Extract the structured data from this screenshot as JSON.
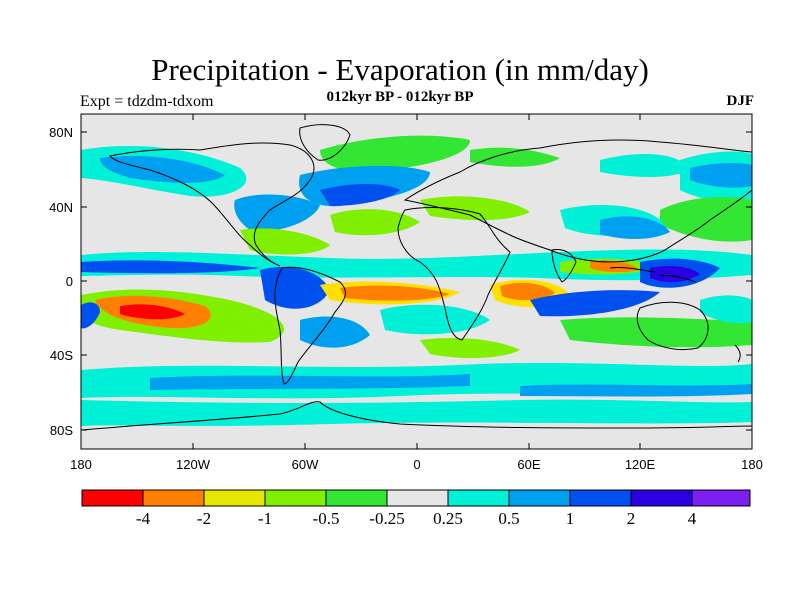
{
  "title": "Precipitation - Evaporation (in mm/day)",
  "subtitle": "012kyr BP - 012kyr BP",
  "left_label": "Expt = tdzdm-tdxom",
  "right_label": "DJF",
  "axes": {
    "lat_ticks": [
      "80N",
      "40N",
      "0",
      "40S",
      "80S"
    ],
    "lon_ticks": [
      "180",
      "120W",
      "60W",
      "0",
      "60E",
      "120E",
      "180"
    ]
  },
  "legend": {
    "colors": [
      "#ff0000",
      "#ff8000",
      "#e6e600",
      "#80f000",
      "#33e633",
      "#e6e6e6",
      "#00f0d8",
      "#00a0f0",
      "#0050f0",
      "#2a00e0",
      "#7a20f0"
    ],
    "labels": [
      "-4",
      "-2",
      "-1",
      "-0.5",
      "-0.25",
      "0.25",
      "0.5",
      "1",
      "2",
      "4"
    ]
  },
  "map": {
    "background_color": "#e6e6e6",
    "coastline_color": "#000000"
  }
}
